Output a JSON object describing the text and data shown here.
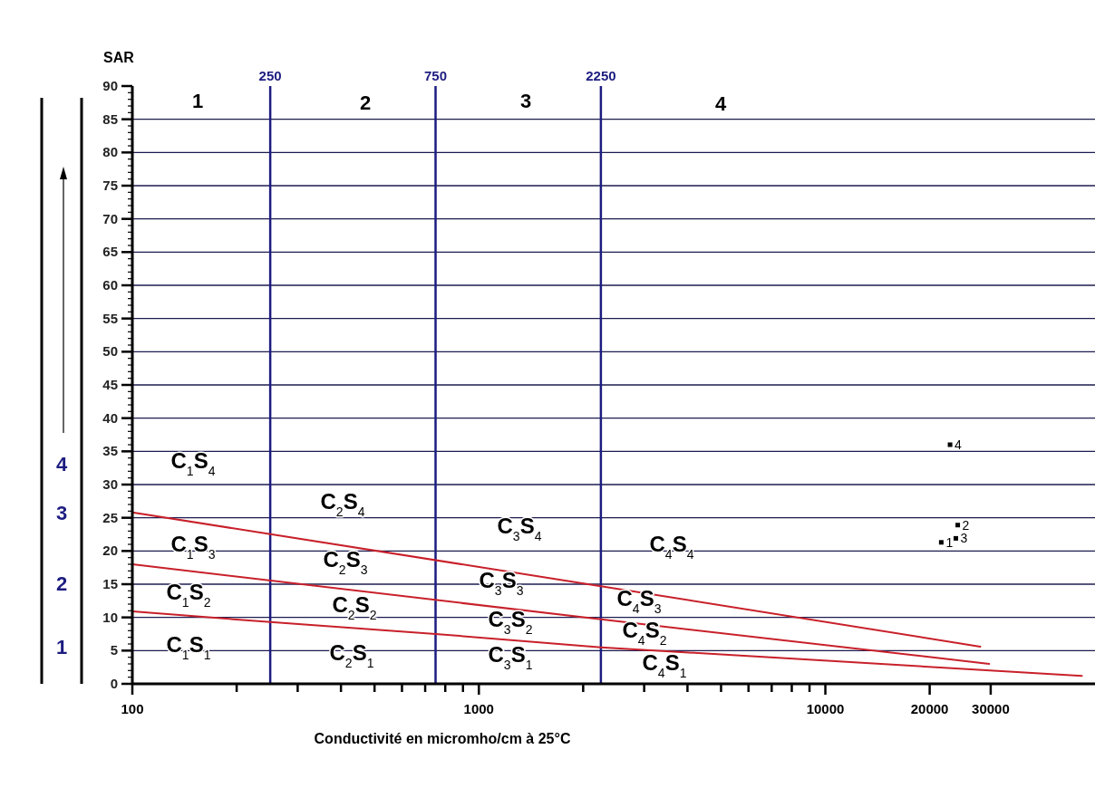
{
  "chart_data": {
    "type": "scatter",
    "xlabel": "Conductivité en micromho/cm à 25°C",
    "ylabel": "SAR",
    "log": "x",
    "xlim": [
      100,
      60000
    ],
    "xticks": [
      100,
      {
        "value": 200,
        "label": null
      },
      {
        "value": 300,
        "label": null
      },
      {
        "value": 400,
        "label": null
      },
      {
        "value": 500,
        "label": null
      },
      {
        "value": 600,
        "label": null
      },
      {
        "value": 700,
        "label": null
      },
      {
        "value": 800,
        "label": null
      },
      {
        "value": 900,
        "label": null
      },
      1000,
      {
        "value": 2000,
        "label": null
      },
      {
        "value": 3000,
        "label": null
      },
      {
        "value": 4000,
        "label": null
      },
      {
        "value": 5000,
        "label": null
      },
      {
        "value": 6000,
        "label": null
      },
      {
        "value": 7000,
        "label": null
      },
      {
        "value": 8000,
        "label": null
      },
      {
        "value": 9000,
        "label": null
      },
      10000,
      20000,
      30000
    ],
    "ylim": [
      0,
      90
    ],
    "yticks": [
      0,
      5,
      10,
      15,
      20,
      25,
      30,
      35,
      40,
      45,
      50,
      55,
      60,
      65,
      70,
      75,
      80,
      85,
      90
    ],
    "grid": "y",
    "series": [
      {
        "type": "scatter",
        "color": "#000000",
        "marker": "square",
        "x": [
          21600,
          24100,
          23800,
          22900
        ],
        "values": [
          21.3,
          23.9,
          21.9,
          36.0
        ]
      },
      {
        "type": "line",
        "color": "#c8202a",
        "marker": "none",
        "line_style": "solid",
        "x": [
          100,
          2250,
          28000
        ],
        "values": [
          25.8,
          14.7,
          5.6
        ]
      },
      {
        "type": "line",
        "color": "#c8202a",
        "marker": "none",
        "line_style": "solid",
        "x": [
          100,
          2250,
          29700
        ],
        "values": [
          18.0,
          9.7,
          3.0
        ]
      },
      {
        "type": "line",
        "color": "#c8202a",
        "marker": "none",
        "line_style": "solid",
        "x": [
          100,
          250,
          750,
          2250,
          55000
        ],
        "values": [
          10.9,
          9.3,
          7.5,
          5.5,
          1.2
        ]
      }
    ],
    "ref_lines": [
      {
        "axis": "x",
        "value": 250,
        "label": "250",
        "color": "#1c1c80"
      },
      {
        "axis": "x",
        "value": 750,
        "label": "750",
        "color": "#1c1c80"
      },
      {
        "axis": "x",
        "value": 2250,
        "label": "2250",
        "color": "#1c1c80"
      }
    ],
    "annotations": [
      {
        "text": "1",
        "x": 21600,
        "y": 21.3
      },
      {
        "text": "2",
        "x": 24100,
        "y": 23.9
      },
      {
        "text": "3",
        "x": 23800,
        "y": 21.9
      },
      {
        "text": "4",
        "x": 22900,
        "y": 36.0
      },
      "1",
      "2",
      "3",
      "4",
      "4",
      "3",
      "2",
      "1",
      "C$_{1}$S$_{4}$",
      "C$_{1}$S$_{3}$",
      "C$_{1}$S$_{2}$",
      "C$_{1}$S$_{1}$",
      "C$_{2}$S$_{4}$",
      "C$_{2}$S$_{3}$",
      "C$_{2}$S$_{2}$",
      "C$_{2}$S$_{1}$",
      "C$_{3}$S$_{4}$",
      "C$_{3}$S$_{3}$",
      "C$_{3}$S$_{2}$",
      "C$_{3}$S$_{1}$",
      "C$_{4}$S$_{4}$",
      "C$_{4}$S$_{3}$",
      "C$_{4}$S$_{2}$",
      "C$_{4}$S$_{1}$"
    ]
  }
}
